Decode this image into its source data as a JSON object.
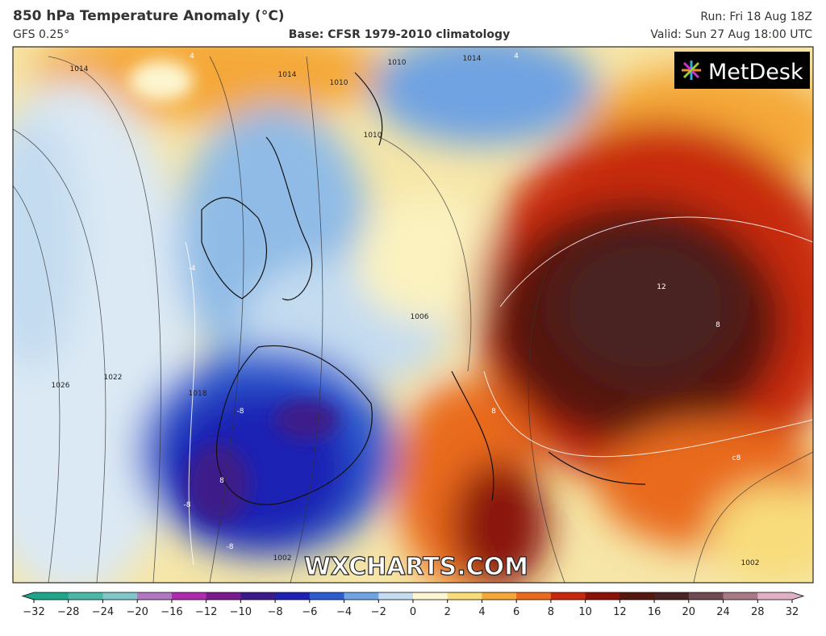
{
  "header": {
    "title": "850 hPa Temperature Anomaly (°C)",
    "model": "GFS 0.25°",
    "base": "Base: CFSR 1979-2010 climatology",
    "run": "Run: Fri 18 Aug 18Z",
    "valid": "Valid: Sun 27 Aug 18:00 UTC"
  },
  "logo": "MetDesk",
  "watermark": "WXCHARTS.COM",
  "contour_labels": [
    "1014",
    "1014",
    "1010",
    "1010",
    "1010",
    "1014",
    "1022",
    "1026",
    "1018",
    "1006",
    "1002",
    "1002",
    "12",
    "8",
    "-8",
    "-8",
    "-8",
    "8",
    "4",
    "-4",
    "4",
    "8",
    "c8"
  ],
  "colorbar": {
    "ticks": [
      {
        "value": -32,
        "label": "−32"
      },
      {
        "value": -28,
        "label": "−28"
      },
      {
        "value": -24,
        "label": "−24"
      },
      {
        "value": -20,
        "label": "−20"
      },
      {
        "value": -16,
        "label": "−16"
      },
      {
        "value": -12,
        "label": "−12"
      },
      {
        "value": -10,
        "label": "−10"
      },
      {
        "value": -8,
        "label": "−8"
      },
      {
        "value": -6,
        "label": "−6"
      },
      {
        "value": -4,
        "label": "−4"
      },
      {
        "value": -2,
        "label": "−2"
      },
      0,
      2,
      4,
      6,
      8,
      10,
      12,
      16,
      20,
      24,
      28,
      32
    ],
    "colors": [
      "#1fa58a",
      "#4bb7a8",
      "#7fc6c6",
      "#b078c0",
      "#b02ab0",
      "#7a1a8e",
      "#3d1a8a",
      "#1e22b4",
      "#2d5bd0",
      "#6fa3e2",
      "#c4dcf0",
      "#fdf6d2",
      "#f8dc7a",
      "#f5a838",
      "#e96a1a",
      "#c8290e",
      "#8a1208",
      "#551710",
      "#4a2424",
      "#6e4a52",
      "#a87a86",
      "#e0b0c4"
    ]
  }
}
